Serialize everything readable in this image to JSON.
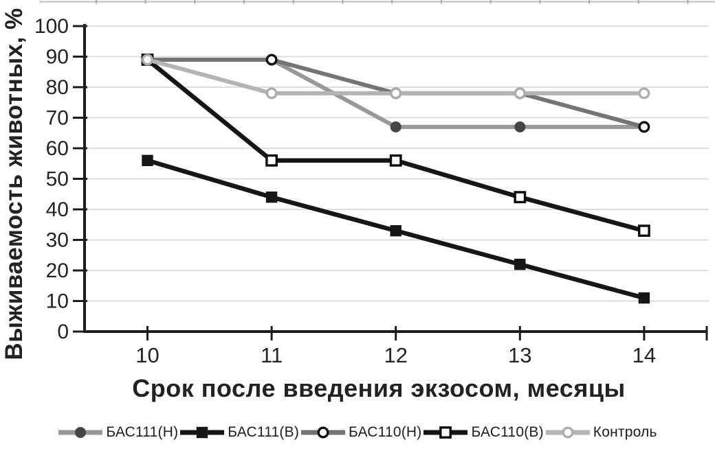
{
  "chart_data": {
    "type": "line",
    "title": "",
    "xlabel": "Срок после введения экзосом, месяцы",
    "ylabel": "Выживаемость животных, %",
    "x": [
      10,
      11,
      12,
      13,
      14
    ],
    "x_ticks": [
      "10",
      "11",
      "12",
      "13",
      "14"
    ],
    "y_ticks": [
      0,
      10,
      20,
      30,
      40,
      50,
      60,
      70,
      80,
      90,
      100
    ],
    "ylim": [
      0,
      100
    ],
    "grid": "horizontal",
    "legend_position": "bottom",
    "series": [
      {
        "name": "БАС111(Н)",
        "values": [
          89,
          89,
          67,
          67,
          67
        ],
        "line_color": "#989898",
        "line_width": 6,
        "marker": "circle",
        "marker_fill": "filled",
        "marker_color": "#454545"
      },
      {
        "name": "БАС111(В)",
        "values": [
          56,
          44,
          33,
          22,
          11
        ],
        "line_color": "#161616",
        "line_width": 6.5,
        "marker": "square",
        "marker_fill": "filled",
        "marker_color": "#161616"
      },
      {
        "name": "БАС110(Н)",
        "values": [
          89,
          89,
          78,
          78,
          67
        ],
        "line_color": "#747474",
        "line_width": 6,
        "marker": "circle",
        "marker_fill": "open",
        "marker_color": "#0d0d0d"
      },
      {
        "name": "БАС110(В)",
        "values": [
          89,
          56,
          56,
          44,
          33
        ],
        "line_color": "#161616",
        "line_width": 6.5,
        "marker": "square",
        "marker_fill": "open",
        "marker_color": "#0d0d0d"
      },
      {
        "name": "Контроль",
        "values": [
          89,
          78,
          78,
          78,
          78
        ],
        "line_color": "#b4b4b4",
        "line_width": 6,
        "marker": "circle",
        "marker_fill": "open",
        "marker_color": "#adadad"
      }
    ]
  },
  "colors": {
    "grid": "#dadada",
    "axis": "#1c1c1c",
    "top_rule": "#cacaca",
    "top_rule_tick": "#a9a9a9",
    "text": "#262626",
    "marker_open_fill": "#ffffff"
  }
}
